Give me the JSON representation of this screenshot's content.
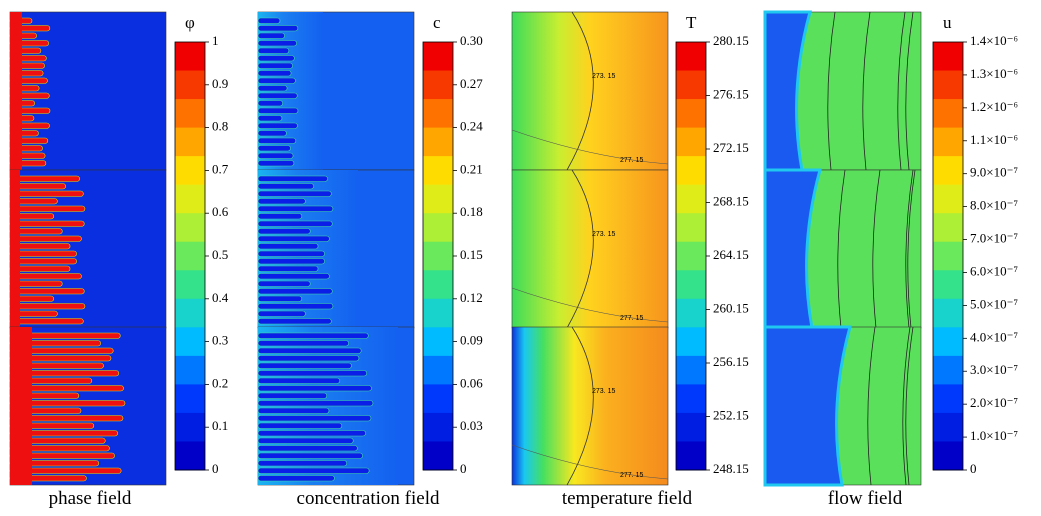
{
  "panels": [
    {
      "caption": "phase field",
      "symbol": "φ",
      "ticks": [
        "1",
        "0.9",
        "0.8",
        "0.7",
        "0.6",
        "0.5",
        "0.4",
        "0.3",
        "0.2",
        "0.1",
        "0"
      ]
    },
    {
      "caption": "concentration  field",
      "symbol": "c",
      "ticks": [
        "0.30",
        "0.27",
        "0.24",
        "0.21",
        "0.18",
        "0.15",
        "0.12",
        "0.09",
        "0.06",
        "0.03",
        "0"
      ]
    },
    {
      "caption": "temperature  field",
      "symbol": "T",
      "ticks": [
        "280.15",
        "276.15",
        "272.15",
        "268.15",
        "264.15",
        "260.15",
        "256.15",
        "252.15",
        "248.15"
      ],
      "contour_labels": [
        [
          "273. 15",
          "277. 15"
        ],
        [
          "273. 15",
          "277. 15"
        ],
        [
          "273. 15",
          "277. 15"
        ]
      ]
    },
    {
      "caption": "flow  field",
      "symbol": "u",
      "ticks": [
        "1.4×10⁻⁶",
        "1.3×10⁻⁶",
        "1.2×10⁻⁶",
        "1.1×10⁻⁶",
        "9.0×10⁻⁷",
        "8.0×10⁻⁷",
        "7.0×10⁻⁷",
        "6.0×10⁻⁷",
        "5.0×10⁻⁷",
        "4.0×10⁻⁷",
        "3.0×10⁻⁷",
        "2.0×10⁻⁷",
        "1.0×10⁻⁷",
        "0"
      ]
    }
  ]
}
